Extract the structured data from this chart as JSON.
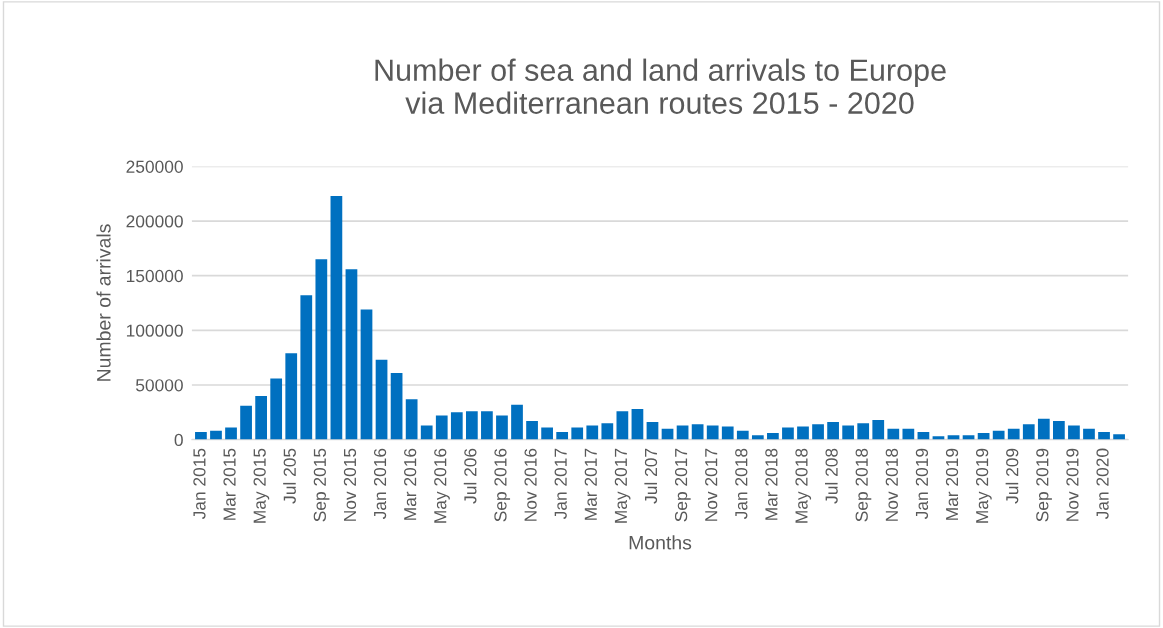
{
  "chart_data": {
    "type": "bar",
    "title": "Number of sea and land arrivals to Europe\nvia Mediterranean routes 2015 - 2020",
    "xlabel": "Months",
    "ylabel": "Number of arrivals",
    "categories": [
      "Jan 2015",
      null,
      "Mar 2015",
      null,
      "May 2015",
      null,
      "Jul 205",
      null,
      "Sep 2015",
      null,
      "Nov 2015",
      null,
      "Jan 2016",
      null,
      "Mar 2016",
      null,
      "May 2016",
      null,
      "Jul 206",
      null,
      "Sep 2016",
      null,
      "Nov 2016",
      null,
      "Jan 2017",
      null,
      "Mar 2017",
      null,
      "May 2017",
      null,
      "Jul 207",
      null,
      "Sep 2017",
      null,
      "Nov 2017",
      null,
      "Jan 2018",
      null,
      "Mar 2018",
      null,
      "May 2018",
      null,
      "Jul 208",
      null,
      "Sep 2018",
      null,
      "Nov 2018",
      null,
      "Jan 2019",
      null,
      "Mar 2019",
      null,
      "May 2019",
      null,
      "Jul 209",
      null,
      "Sep 2019",
      null,
      "Nov 2019",
      null,
      "Jan 2020",
      null
    ],
    "values": [
      7000,
      8000,
      11000,
      31000,
      40000,
      56000,
      79000,
      132000,
      165000,
      223000,
      156000,
      119000,
      73000,
      61000,
      37000,
      13000,
      22000,
      25000,
      26000,
      26000,
      22000,
      32000,
      17000,
      11000,
      7000,
      11000,
      13000,
      15000,
      26000,
      28000,
      16000,
      10000,
      13000,
      14000,
      13000,
      12000,
      8000,
      4000,
      6000,
      11000,
      12000,
      14000,
      16000,
      13000,
      15000,
      18000,
      10000,
      10000,
      7000,
      3000,
      4000,
      4000,
      6000,
      8000,
      10000,
      14000,
      19000,
      17000,
      13000,
      10000,
      7000,
      5000
    ],
    "color": "#0070c0",
    "ylim": [
      0,
      250000
    ],
    "yticks": [
      0,
      50000,
      100000,
      150000,
      200000,
      250000
    ],
    "grid": "y",
    "legend": false
  }
}
